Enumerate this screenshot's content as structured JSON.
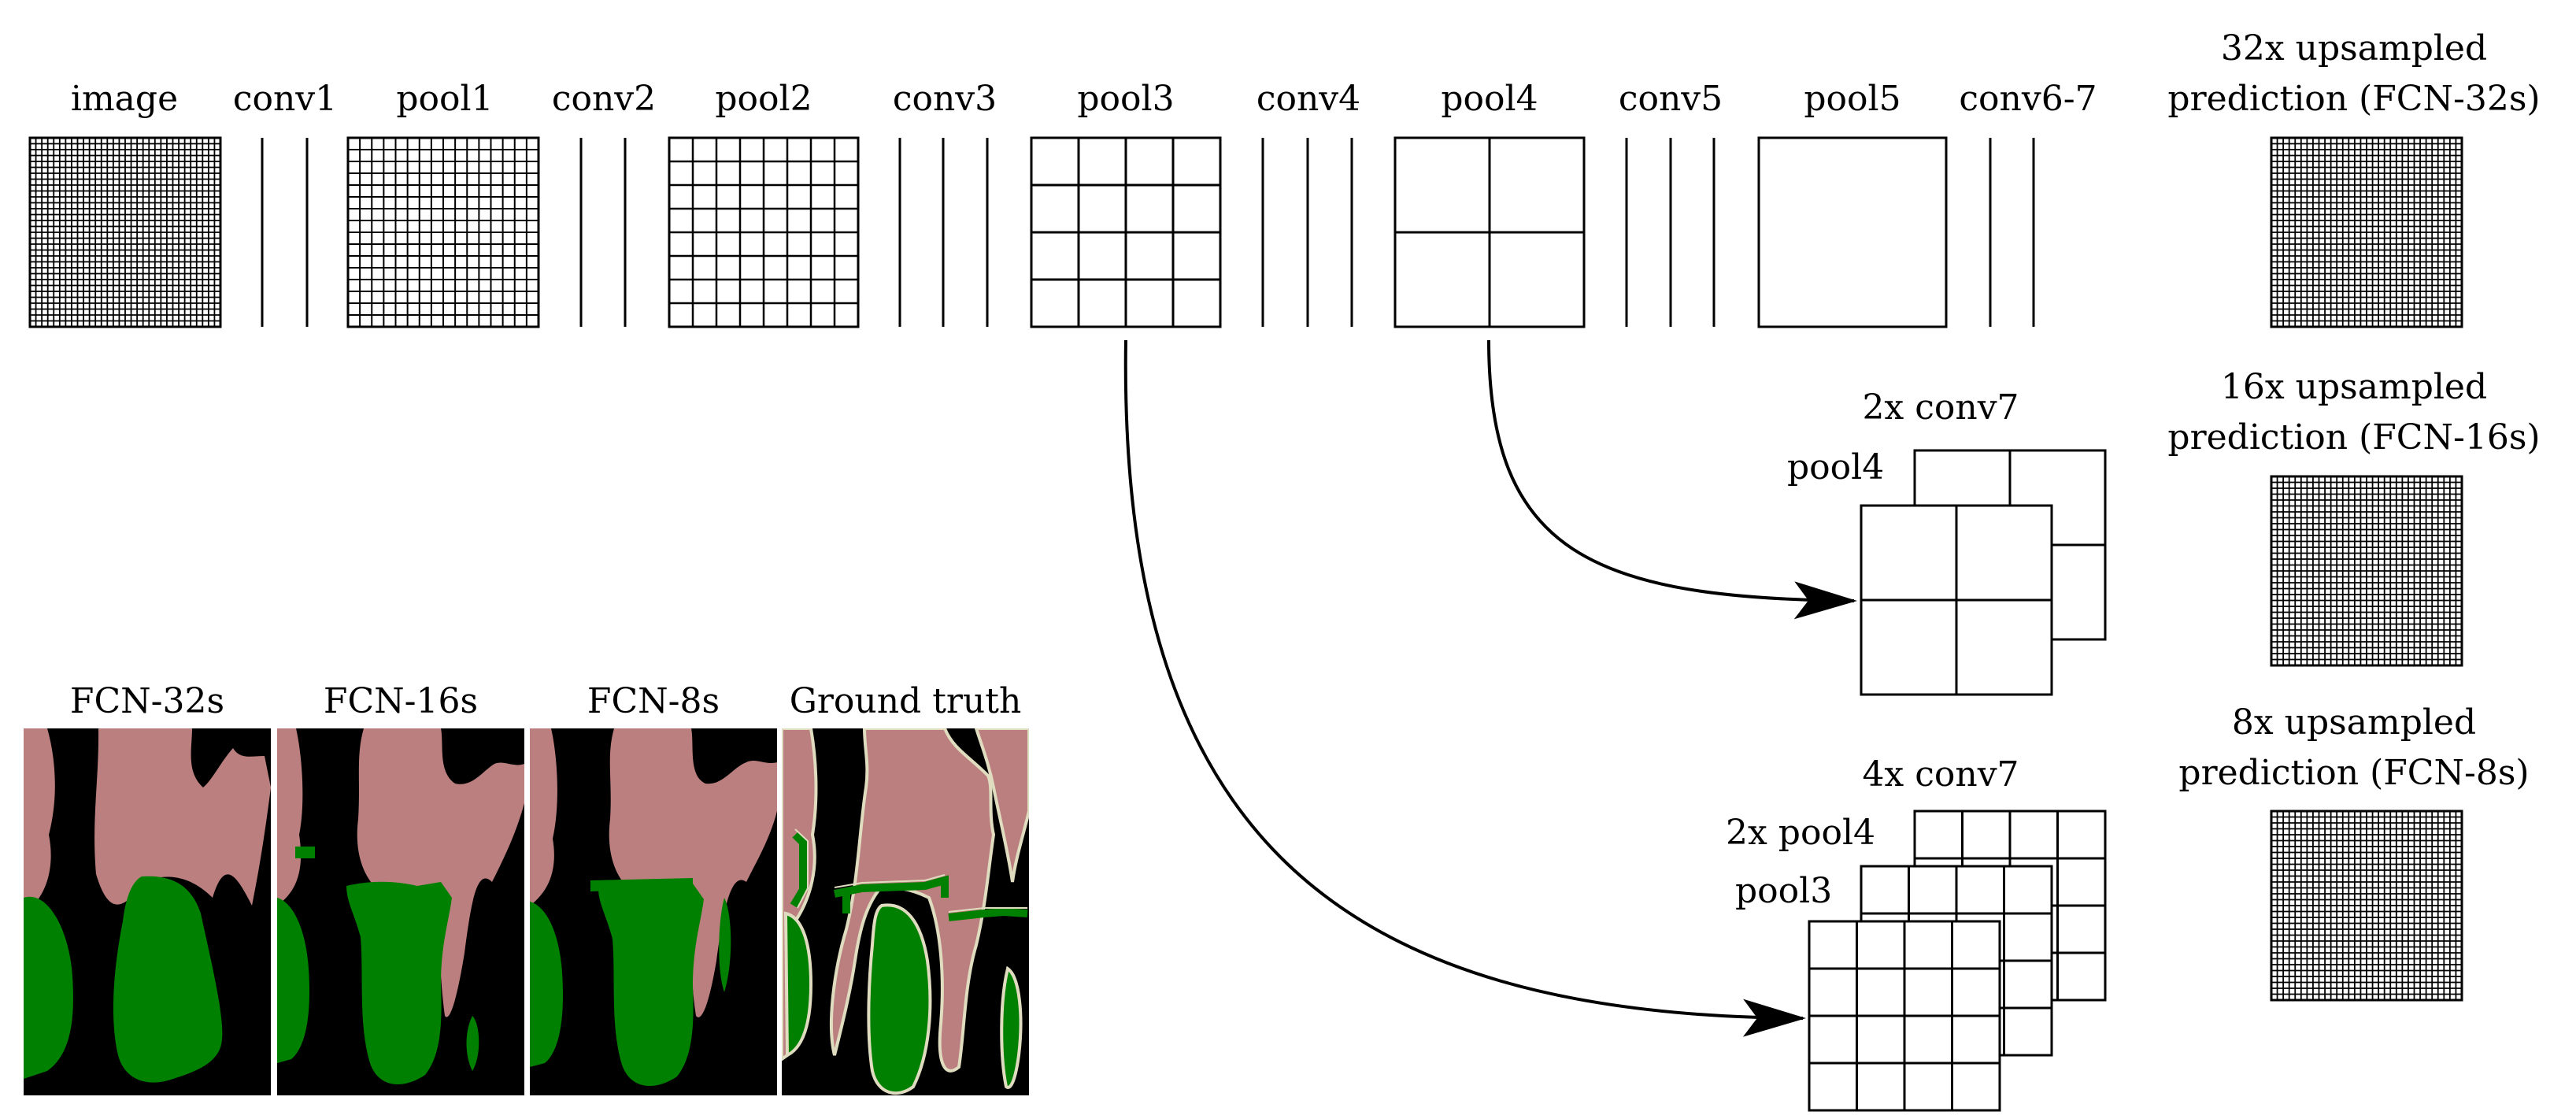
{
  "network": {
    "layers": [
      {
        "id": "image",
        "label": "image"
      },
      {
        "id": "conv1",
        "label": "conv1"
      },
      {
        "id": "pool1",
        "label": "pool1"
      },
      {
        "id": "conv2",
        "label": "conv2"
      },
      {
        "id": "pool2",
        "label": "pool2"
      },
      {
        "id": "conv3",
        "label": "conv3"
      },
      {
        "id": "pool3",
        "label": "pool3"
      },
      {
        "id": "conv4",
        "label": "conv4"
      },
      {
        "id": "pool4",
        "label": "pool4"
      },
      {
        "id": "conv5",
        "label": "conv5"
      },
      {
        "id": "pool5",
        "label": "pool5"
      },
      {
        "id": "conv67",
        "label": "conv6-7"
      }
    ]
  },
  "predictions": {
    "fcn32": {
      "line1": "32x upsampled",
      "line2": "prediction (FCN-32s)"
    },
    "fcn16": {
      "line1": "16x upsampled",
      "line2": "prediction (FCN-16s)"
    },
    "fcn8": {
      "line1": "8x upsampled",
      "line2": "prediction (FCN-8s)"
    }
  },
  "fusion": {
    "stage16": {
      "top_label": "2x conv7",
      "side_label": "pool4"
    },
    "stage8": {
      "top_label": "4x conv7",
      "side_label_1": "2x pool4",
      "side_label_2": "pool3"
    }
  },
  "results": {
    "panels": [
      {
        "id": "fcn32s",
        "label": "FCN-32s"
      },
      {
        "id": "fcn16s",
        "label": "FCN-16s"
      },
      {
        "id": "fcn8s",
        "label": "FCN-8s"
      },
      {
        "id": "gt",
        "label": "Ground truth"
      }
    ]
  },
  "colors": {
    "person": "#bc7f7f",
    "bicycle": "#008000",
    "background": "#000000",
    "void_outline": "#e0dcc0"
  }
}
